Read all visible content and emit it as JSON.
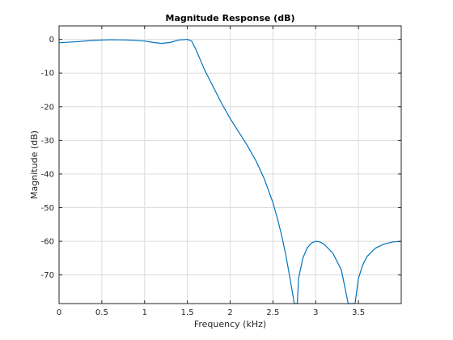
{
  "chart_data": {
    "type": "line",
    "title": "Magnitude Response (dB)",
    "xlabel": "Frequency (kHz)",
    "ylabel": "Magnitude (dB)",
    "xlim": [
      0,
      4
    ],
    "ylim": [
      -78.5,
      4
    ],
    "xticks": [
      0,
      0.5,
      1,
      1.5,
      2,
      2.5,
      3,
      3.5
    ],
    "xtick_labels": [
      "0",
      "0.5",
      "1",
      "1.5",
      "2",
      "2.5",
      "3",
      "3.5"
    ],
    "yticks": [
      0,
      -10,
      -20,
      -30,
      -40,
      -50,
      -60,
      -70
    ],
    "ytick_labels": [
      "0",
      "-10",
      "-20",
      "-30",
      "-40",
      "-50",
      "-60",
      "-70"
    ],
    "grid": true,
    "color": "#0072bd",
    "series": [
      {
        "name": "",
        "x": [
          0,
          0.2,
          0.4,
          0.6,
          0.8,
          1.0,
          1.1,
          1.2,
          1.3,
          1.4,
          1.5,
          1.55,
          1.6,
          1.7,
          1.8,
          1.9,
          2.0,
          2.1,
          2.2,
          2.3,
          2.4,
          2.5,
          2.55,
          2.6,
          2.65,
          2.7,
          2.75,
          2.775,
          2.78,
          2.785,
          2.8,
          2.85,
          2.9,
          2.95,
          3.0,
          3.05,
          3.1,
          3.2,
          3.3,
          3.38,
          3.42,
          3.46,
          3.5,
          3.55,
          3.6,
          3.7,
          3.8,
          3.9,
          4.0
        ],
        "y": [
          -1.0,
          -0.7,
          -0.3,
          -0.1,
          -0.2,
          -0.5,
          -0.9,
          -1.2,
          -0.9,
          -0.2,
          0.0,
          -0.5,
          -3.0,
          -9.0,
          -14.0,
          -19.0,
          -23.5,
          -27.5,
          -31.5,
          -36.0,
          -41.5,
          -48.5,
          -53.0,
          -58.0,
          -64.0,
          -71.0,
          -78.5,
          -78.5,
          -78.5,
          -78.5,
          -71.0,
          -65.0,
          -62.0,
          -60.5,
          -60.0,
          -60.2,
          -60.9,
          -63.5,
          -68.5,
          -78.5,
          -78.5,
          -78.5,
          -71.0,
          -67.0,
          -64.5,
          -62.0,
          -60.8,
          -60.2,
          -60.0
        ]
      }
    ]
  }
}
